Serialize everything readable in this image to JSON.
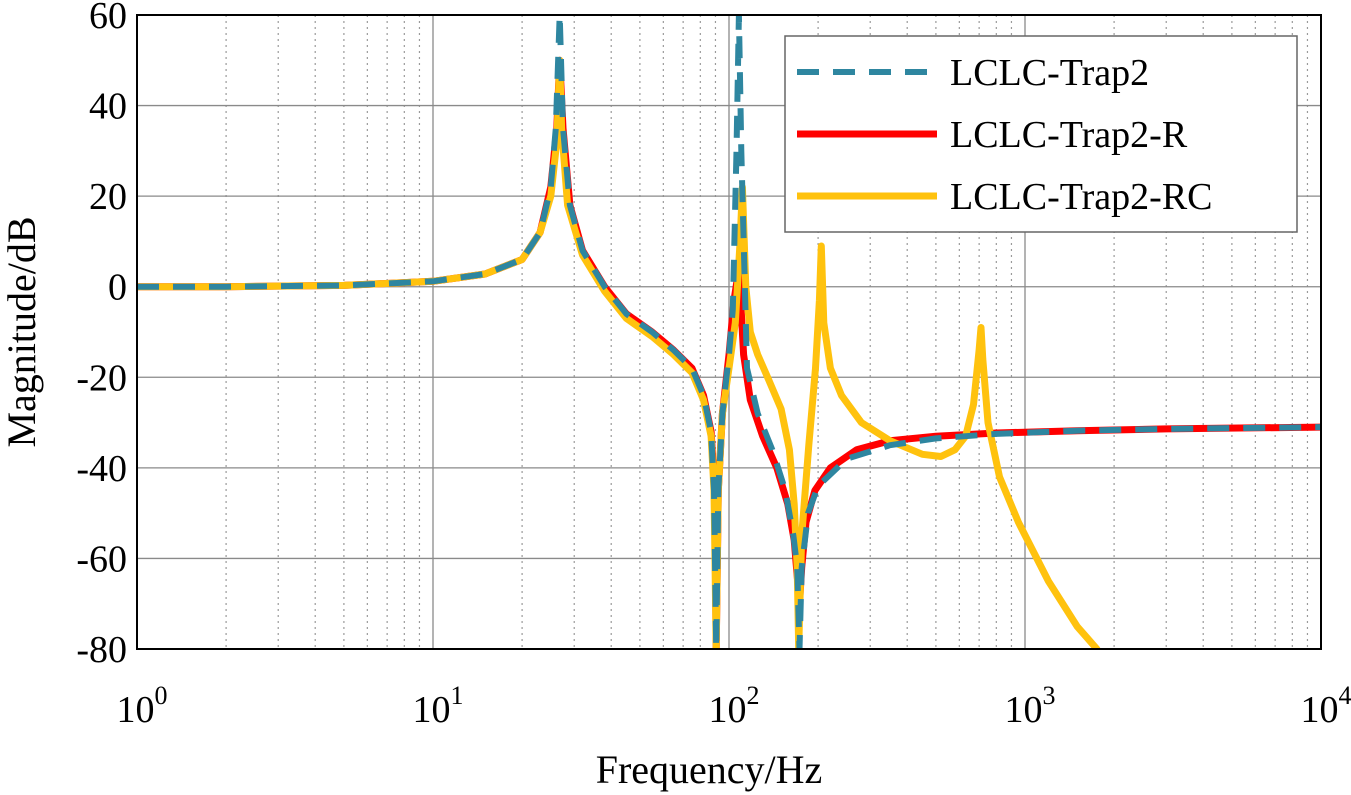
{
  "chart_data": {
    "type": "line",
    "title": "",
    "xlabel": "Frequency/Hz",
    "ylabel": "Magnitude/dB",
    "xscale": "log",
    "xlim": [
      1,
      10000
    ],
    "ylim": [
      -80,
      60
    ],
    "grid": true,
    "legend_position": "top-right",
    "xticks": [
      {
        "value": 1,
        "base": "10",
        "exp": "0"
      },
      {
        "value": 10,
        "base": "10",
        "exp": "1"
      },
      {
        "value": 100,
        "base": "10",
        "exp": "2"
      },
      {
        "value": 1000,
        "base": "10",
        "exp": "3"
      },
      {
        "value": 10000,
        "base": "10",
        "exp": "4"
      }
    ],
    "yticks": [
      60,
      40,
      20,
      0,
      -20,
      -40,
      -60,
      -80
    ],
    "ytick_labels": [
      "60",
      "40",
      "20",
      "0",
      "-20",
      "-40",
      "-60",
      "-80"
    ],
    "series": [
      {
        "name": "LCLC-Trap2",
        "color": "#2e86a0",
        "style": "dashed",
        "points": [
          [
            1,
            0
          ],
          [
            2,
            0
          ],
          [
            5,
            0.3
          ],
          [
            10,
            1.2
          ],
          [
            15,
            2.8
          ],
          [
            20,
            6
          ],
          [
            23,
            12
          ],
          [
            25,
            22
          ],
          [
            26,
            35
          ],
          [
            26.8,
            60
          ],
          [
            27.5,
            35
          ],
          [
            29,
            18
          ],
          [
            32,
            8
          ],
          [
            38,
            0
          ],
          [
            45,
            -6
          ],
          [
            55,
            -10
          ],
          [
            65,
            -14
          ],
          [
            75,
            -18
          ],
          [
            82,
            -24
          ],
          [
            87,
            -32
          ],
          [
            89,
            -45
          ],
          [
            90.5,
            -80
          ],
          [
            92,
            -45
          ],
          [
            95,
            -28
          ],
          [
            100,
            -15
          ],
          [
            103,
            -5
          ],
          [
            106,
            30
          ],
          [
            108,
            60
          ],
          [
            110,
            30
          ],
          [
            115,
            -18
          ],
          [
            125,
            -28
          ],
          [
            140,
            -36
          ],
          [
            155,
            -45
          ],
          [
            165,
            -55
          ],
          [
            170,
            -62
          ],
          [
            173,
            -80
          ],
          [
            176,
            -62
          ],
          [
            185,
            -50
          ],
          [
            200,
            -44
          ],
          [
            250,
            -38
          ],
          [
            350,
            -35
          ],
          [
            500,
            -33.5
          ],
          [
            800,
            -32.5
          ],
          [
            1500,
            -31.8
          ],
          [
            3000,
            -31.4
          ],
          [
            10000,
            -31
          ]
        ]
      },
      {
        "name": "LCLC-Trap2-R",
        "color": "#ff0000",
        "style": "solid",
        "points": [
          [
            1,
            0
          ],
          [
            2,
            0
          ],
          [
            5,
            0.3
          ],
          [
            10,
            1.2
          ],
          [
            15,
            2.8
          ],
          [
            20,
            6
          ],
          [
            23,
            12
          ],
          [
            25,
            22
          ],
          [
            26.2,
            35
          ],
          [
            26.8,
            50
          ],
          [
            27.5,
            35
          ],
          [
            29,
            18
          ],
          [
            32,
            8
          ],
          [
            38,
            0
          ],
          [
            45,
            -6
          ],
          [
            55,
            -10
          ],
          [
            65,
            -14
          ],
          [
            75,
            -18
          ],
          [
            82,
            -24
          ],
          [
            87,
            -32
          ],
          [
            89.5,
            -45
          ],
          [
            90.5,
            -80
          ],
          [
            92,
            -45
          ],
          [
            95,
            -28
          ],
          [
            100,
            -15
          ],
          [
            104,
            -3
          ],
          [
            108,
            4
          ],
          [
            112,
            -15
          ],
          [
            118,
            -25
          ],
          [
            130,
            -33
          ],
          [
            145,
            -40
          ],
          [
            158,
            -48
          ],
          [
            166,
            -56
          ],
          [
            171,
            -66
          ],
          [
            173,
            -70
          ],
          [
            176,
            -62
          ],
          [
            182,
            -52
          ],
          [
            195,
            -45
          ],
          [
            220,
            -40
          ],
          [
            270,
            -36
          ],
          [
            350,
            -34
          ],
          [
            500,
            -33
          ],
          [
            800,
            -32.3
          ],
          [
            1500,
            -31.8
          ],
          [
            3000,
            -31.4
          ],
          [
            10000,
            -31
          ]
        ]
      },
      {
        "name": "LCLC-Trap2-RC",
        "color": "#ffc20e",
        "style": "solid",
        "points": [
          [
            1,
            0
          ],
          [
            2,
            0
          ],
          [
            5,
            0.3
          ],
          [
            10,
            1.2
          ],
          [
            15,
            2.8
          ],
          [
            20,
            6
          ],
          [
            23,
            12
          ],
          [
            25,
            20
          ],
          [
            26.2,
            32
          ],
          [
            26.8,
            50
          ],
          [
            27.2,
            35
          ],
          [
            28.5,
            18
          ],
          [
            32,
            7
          ],
          [
            38,
            -1
          ],
          [
            45,
            -7
          ],
          [
            55,
            -11
          ],
          [
            65,
            -15
          ],
          [
            75,
            -19
          ],
          [
            82,
            -25
          ],
          [
            87,
            -33
          ],
          [
            89,
            -45
          ],
          [
            90.5,
            -80
          ],
          [
            92,
            -45
          ],
          [
            95,
            -28
          ],
          [
            100,
            -18
          ],
          [
            105,
            -8
          ],
          [
            109,
            10
          ],
          [
            111,
            22
          ],
          [
            114,
            0
          ],
          [
            118,
            -10
          ],
          [
            125,
            -15
          ],
          [
            135,
            -20
          ],
          [
            150,
            -27
          ],
          [
            160,
            -36
          ],
          [
            166,
            -48
          ],
          [
            170,
            -62
          ],
          [
            172,
            -80
          ],
          [
            176,
            -55
          ],
          [
            186,
            -35
          ],
          [
            196,
            -18
          ],
          [
            202,
            -3
          ],
          [
            205,
            9
          ],
          [
            209,
            -8
          ],
          [
            220,
            -18
          ],
          [
            240,
            -24
          ],
          [
            280,
            -30
          ],
          [
            350,
            -34
          ],
          [
            450,
            -37
          ],
          [
            520,
            -37.5
          ],
          [
            580,
            -36
          ],
          [
            630,
            -33
          ],
          [
            670,
            -26
          ],
          [
            700,
            -14
          ],
          [
            710,
            -9
          ],
          [
            720,
            -16
          ],
          [
            750,
            -30
          ],
          [
            820,
            -42
          ],
          [
            950,
            -52
          ],
          [
            1200,
            -65
          ],
          [
            1500,
            -75
          ],
          [
            1750,
            -80
          ]
        ]
      }
    ]
  }
}
